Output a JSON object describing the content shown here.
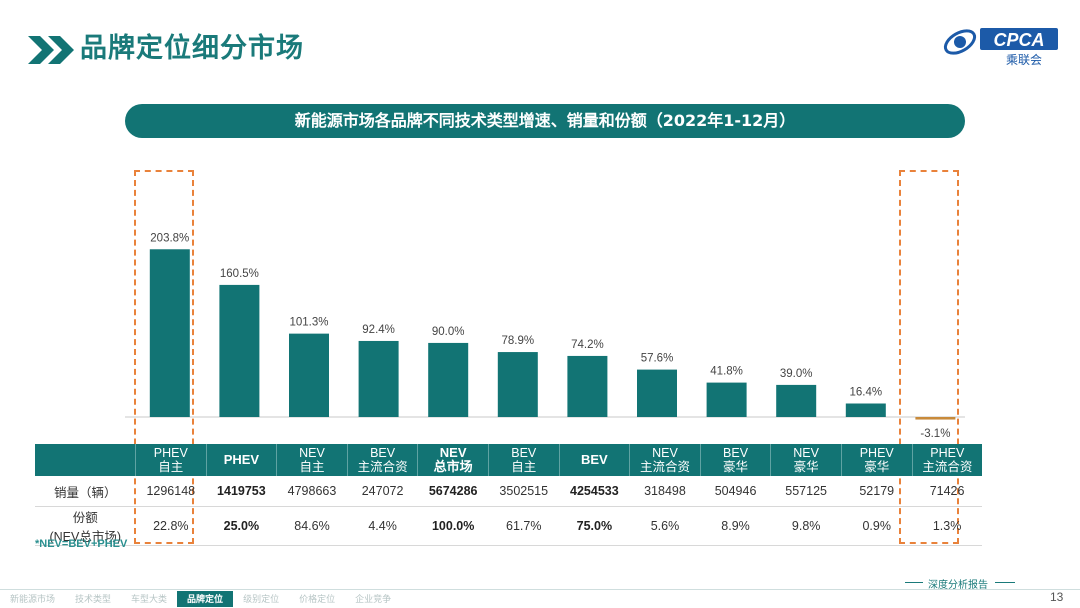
{
  "header": {
    "title": "品牌定位细分市场",
    "logo_text": "CPCA",
    "logo_sub": "乘联会"
  },
  "banner": {
    "title": "新能源市场各品牌不同技术类型增速、销量和份额（2022年1-12月）"
  },
  "chart_data": {
    "type": "bar",
    "title": "新能源市场各品牌不同技术类型增速、销量和份额（2022年1-12月）",
    "categories": [
      "PHEV 自主",
      "PHEV",
      "NEV 自主",
      "BEV 主流合资",
      "NEV 总市场",
      "BEV 自主",
      "BEV",
      "NEV 主流合资",
      "BEV 豪华",
      "NEV 豪华",
      "PHEV 豪华",
      "PHEV 主流合资"
    ],
    "values": [
      203.8,
      160.5,
      101.3,
      92.4,
      90.0,
      78.9,
      74.2,
      57.6,
      41.8,
      39.0,
      16.4,
      -3.1
    ],
    "value_labels": [
      "203.8%",
      "160.5%",
      "101.3%",
      "92.4%",
      "90.0%",
      "78.9%",
      "74.2%",
      "57.6%",
      "41.8%",
      "39.0%",
      "16.4%",
      "-3.1%"
    ],
    "colors": {
      "positive": "#127474",
      "negative": "#c88a3a"
    },
    "highlighted": [
      0,
      11
    ]
  },
  "table": {
    "columns": [
      {
        "line1": "PHEV",
        "line2": "自主",
        "bold": false
      },
      {
        "line1": "PHEV",
        "line2": "",
        "bold": true
      },
      {
        "line1": "NEV",
        "line2": "自主",
        "bold": false
      },
      {
        "line1": "BEV",
        "line2": "主流合资",
        "bold": false
      },
      {
        "line1": "NEV",
        "line2": "总市场",
        "bold": true
      },
      {
        "line1": "BEV",
        "line2": "自主",
        "bold": false
      },
      {
        "line1": "BEV",
        "line2": "",
        "bold": true
      },
      {
        "line1": "NEV",
        "line2": "主流合资",
        "bold": false
      },
      {
        "line1": "BEV",
        "line2": "豪华",
        "bold": false
      },
      {
        "line1": "NEV",
        "line2": "豪华",
        "bold": false
      },
      {
        "line1": "PHEV",
        "line2": "豪华",
        "bold": false
      },
      {
        "line1": "PHEV",
        "line2": "主流合资",
        "bold": false
      }
    ],
    "row_sales_label": "销量（辆）",
    "sales": [
      "1296148",
      "1419753",
      "4798663",
      "247072",
      "5674286",
      "3502515",
      "4254533",
      "318498",
      "504946",
      "557125",
      "52179",
      "71426"
    ],
    "row_share_label_1": "份额",
    "row_share_label_2": "(NEV总市场)",
    "shares": [
      "22.8%",
      "25.0%",
      "84.6%",
      "4.4%",
      "100.0%",
      "61.7%",
      "75.0%",
      "5.6%",
      "8.9%",
      "9.8%",
      "0.9%",
      "1.3%"
    ]
  },
  "footnote": "*NEV=BEV+PHEV",
  "footer": {
    "nav": [
      "新能源市场",
      "技术类型",
      "车型大类",
      "品牌定位",
      "级别定位",
      "价格定位",
      "企业竞争"
    ],
    "active_index": 3,
    "report_tag": "深度分析报告",
    "page_number": "13"
  }
}
